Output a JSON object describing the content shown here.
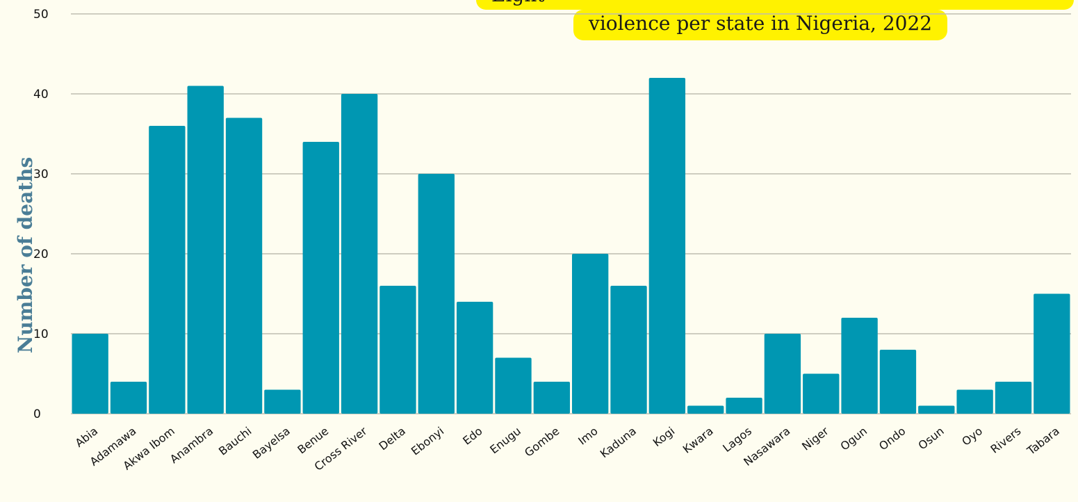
{
  "chart_data": {
    "type": "bar",
    "title_lines": [
      "Eight",
      "violence per state in Nigeria, 2022"
    ],
    "xlabel": "",
    "ylabel": "Number  of deaths",
    "ylim": [
      0,
      50
    ],
    "yticks": [
      0,
      10,
      20,
      30,
      40,
      50
    ],
    "grid": true,
    "categories": [
      "Abia",
      "Adamawa",
      "Akwa Ibom",
      "Anambra",
      "Bauchi",
      "Bayelsa",
      "Benue",
      "Cross River",
      "Delta",
      "Ebonyi",
      "Edo",
      "Enugu",
      "Gombe",
      "Imo",
      "Kaduna",
      "Kogi",
      "Kwara",
      "Lagos",
      "Nasawara",
      "Niger",
      "Ogun",
      "Ondo",
      "Osun",
      "Oyo",
      "Rivers",
      "Tabara"
    ],
    "values": [
      10,
      4,
      36,
      41,
      37,
      3,
      34,
      40,
      16,
      30,
      14,
      7,
      4,
      20,
      16,
      42,
      1,
      2,
      10,
      5,
      12,
      8,
      1,
      3,
      4,
      15
    ],
    "colors": {
      "bar": "#0097b2",
      "grid": "#bdbdb0",
      "background": "#fefdf0",
      "title_highlight": "#fff200",
      "ylabel": "#4a7d96"
    }
  }
}
